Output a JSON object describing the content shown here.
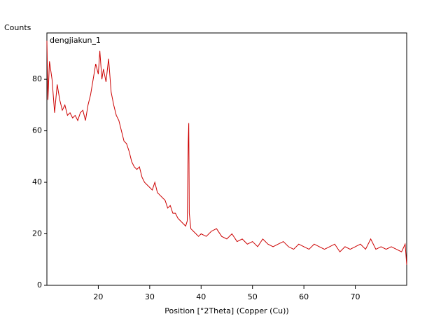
{
  "chart_data": {
    "type": "line",
    "title": "dengjiakun_1",
    "y_label": "Counts",
    "x_label": "Position [°2Theta] (Copper (Cu))",
    "x": [
      10,
      10.2,
      10.5,
      11,
      11.5,
      12,
      12.5,
      13,
      13.5,
      14,
      14.5,
      15,
      15.5,
      16,
      16.5,
      17,
      17.5,
      18,
      18.5,
      19,
      19.5,
      20,
      20.3,
      20.7,
      21,
      21.5,
      22,
      22.5,
      23,
      23.5,
      24,
      24.5,
      25,
      25.5,
      26,
      26.5,
      27,
      27.5,
      28,
      28.5,
      29,
      29.5,
      30,
      30.5,
      31,
      31.5,
      32,
      32.5,
      33,
      33.5,
      34,
      34.5,
      35,
      35.5,
      36,
      36.5,
      37,
      37.3,
      37.5,
      37.6,
      37.7,
      38,
      38.5,
      39,
      39.5,
      40,
      41,
      42,
      43,
      44,
      45,
      46,
      47,
      48,
      49,
      50,
      51,
      52,
      53,
      54,
      55,
      56,
      57,
      58,
      59,
      60,
      61,
      62,
      63,
      64,
      65,
      66,
      67,
      68,
      69,
      70,
      71,
      72,
      73,
      74,
      75,
      76,
      77,
      78,
      79,
      79.7,
      80
    ],
    "series": [
      {
        "name": "dengjiakun_1",
        "color": "#cc0000",
        "values": [
          95,
          72,
          87,
          80,
          67,
          78,
          72,
          68,
          70,
          66,
          67,
          65,
          66,
          64,
          67,
          68,
          64,
          70,
          74,
          80,
          86,
          82,
          91,
          80,
          84,
          79,
          88,
          75,
          70,
          66,
          64,
          60,
          56,
          55,
          52,
          48,
          46,
          45,
          46,
          42,
          40,
          39,
          38,
          37,
          40,
          36,
          35,
          34,
          33,
          30,
          31,
          28,
          28,
          26,
          25,
          24,
          23,
          25,
          56,
          63,
          28,
          22,
          21,
          20,
          19,
          20,
          19,
          21,
          22,
          19,
          18,
          20,
          17,
          18,
          16,
          17,
          15,
          18,
          16,
          15,
          16,
          17,
          15,
          14,
          16,
          15,
          14,
          16,
          15,
          14,
          15,
          16,
          13,
          15,
          14,
          15,
          16,
          14,
          18,
          14,
          15,
          14,
          15,
          14,
          13,
          16,
          8
        ]
      }
    ],
    "xlim": [
      10,
      80
    ],
    "ylim": [
      0,
      98
    ],
    "xticks": [
      20,
      30,
      40,
      50,
      60,
      70
    ],
    "yticks": [
      0,
      20,
      40,
      60,
      80
    ]
  }
}
